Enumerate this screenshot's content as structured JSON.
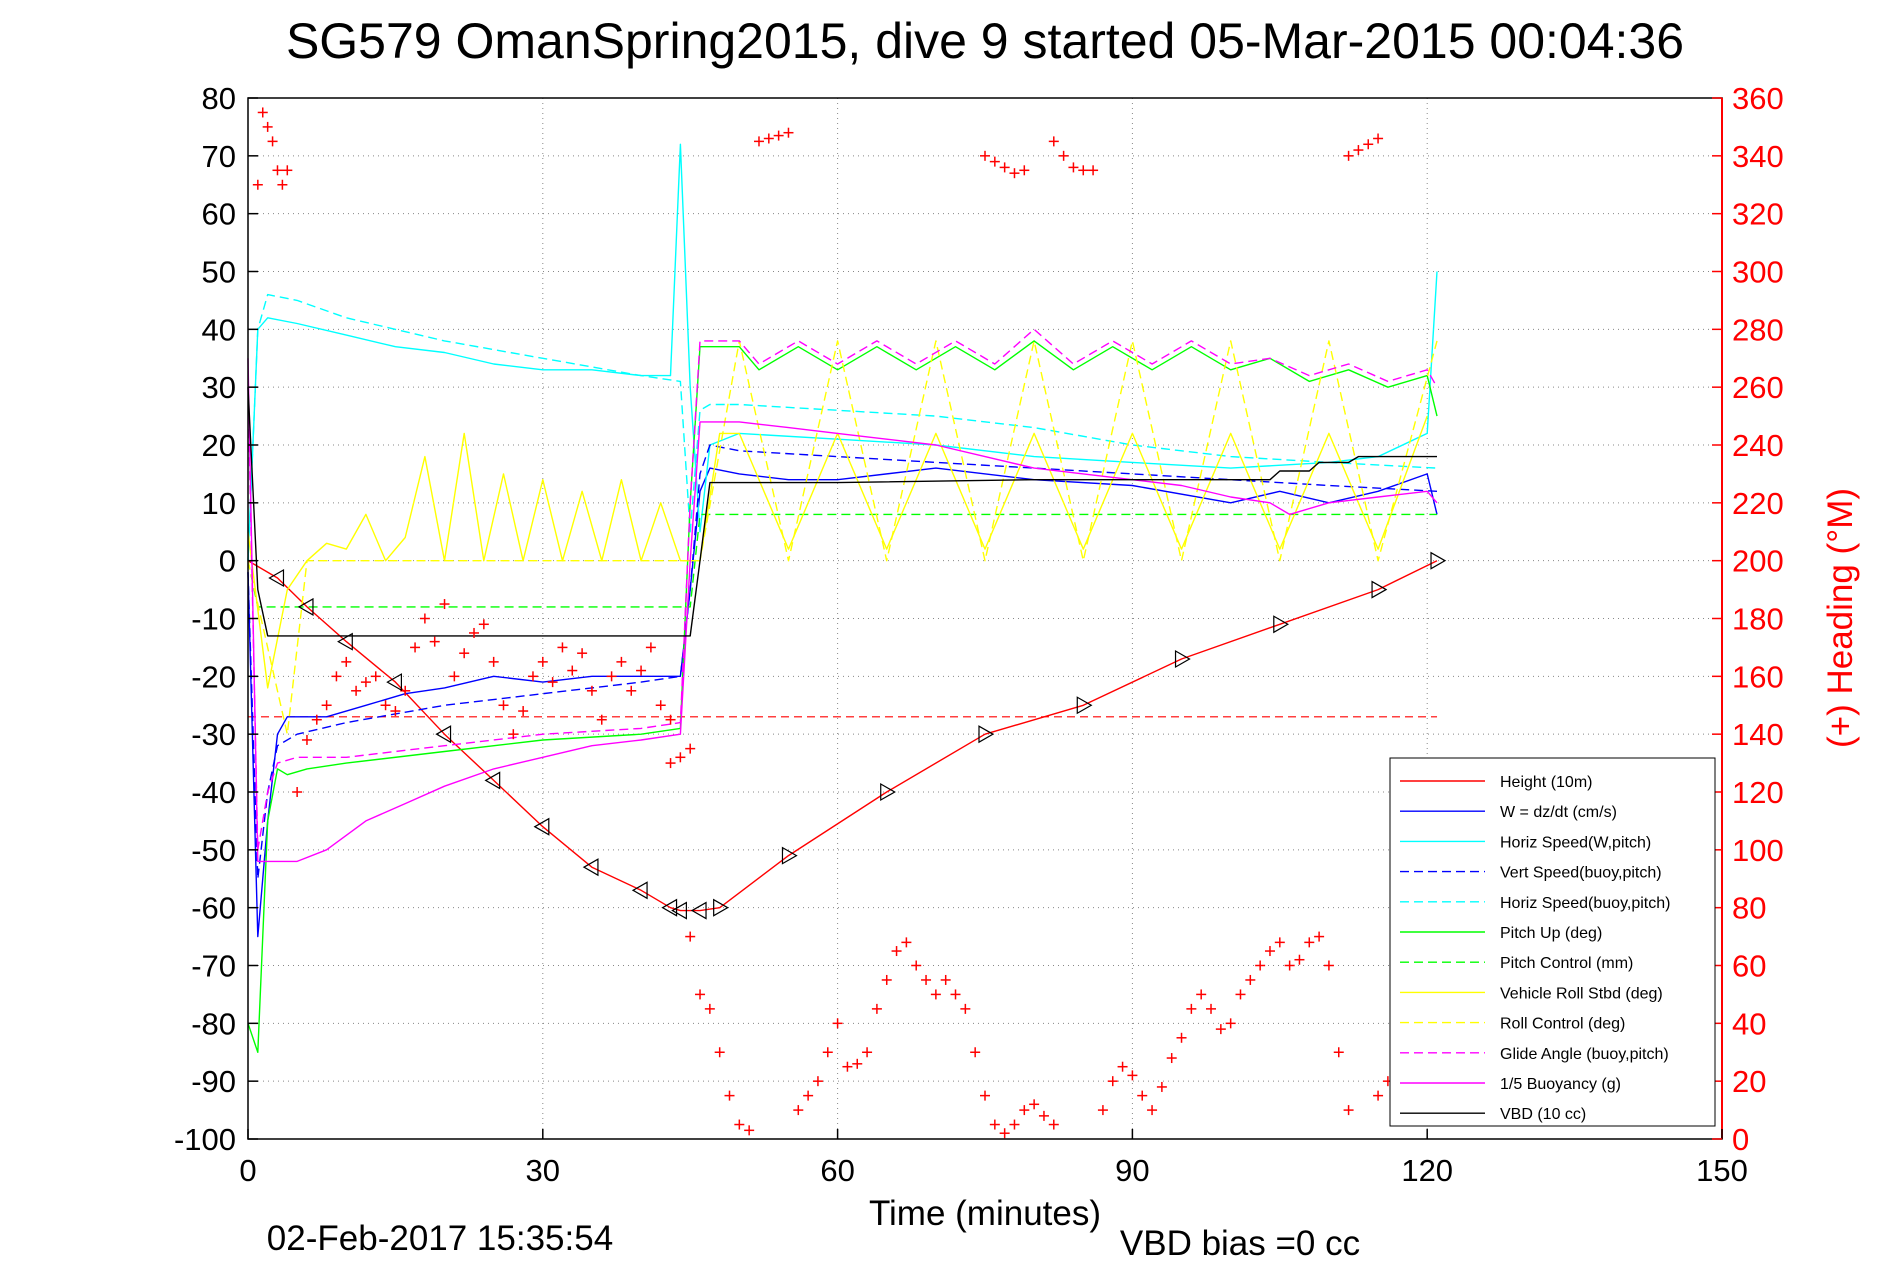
{
  "chart_data": {
    "type": "line",
    "title": "SG579 OmanSpring2015, dive 9 started 05-Mar-2015 00:04:36",
    "xlabel": "Time (minutes)",
    "ylabel_right": "(+) Heading (°M)",
    "xlim": [
      0,
      150
    ],
    "ylim": [
      -100,
      80
    ],
    "ylim_right": [
      0,
      360
    ],
    "x_ticks": [
      "0",
      "30",
      "60",
      "90",
      "120",
      "150"
    ],
    "y_ticks": [
      "80",
      "70",
      "60",
      "50",
      "40",
      "30",
      "20",
      "10",
      "0",
      "-10",
      "-20",
      "-30",
      "-40",
      "-50",
      "-60",
      "-70",
      "-80",
      "-90",
      "-100"
    ],
    "y_right_ticks": [
      "360",
      "340",
      "320",
      "300",
      "280",
      "260",
      "240",
      "220",
      "200",
      "180",
      "160",
      "140",
      "120",
      "100",
      "80",
      "60",
      "40",
      "20",
      "0"
    ],
    "grid": true,
    "legend_position": "bottom-right",
    "footer_date": "02-Feb-2017 15:35:54",
    "footer_note": "VBD bias =0 cc",
    "series": [
      {
        "name": "Height (10m)",
        "color": "#ff0000",
        "style": "solid",
        "x": [
          0,
          3,
          6,
          10,
          15,
          20,
          25,
          30,
          35,
          40,
          43,
          44,
          46,
          48,
          55,
          65,
          75,
          85,
          95,
          105,
          115,
          121
        ],
        "y": [
          0,
          -3,
          -8,
          -14,
          -21,
          -30,
          -38,
          -46,
          -53,
          -57,
          -60,
          -60.5,
          -60.5,
          -60,
          -51,
          -40,
          -30,
          -25,
          -17,
          -11,
          -5,
          0
        ]
      },
      {
        "name": "W = dz/dt (cm/s)",
        "color": "#0000ff",
        "style": "solid",
        "x": [
          0,
          1,
          2,
          3,
          4,
          5,
          8,
          12,
          16,
          20,
          25,
          30,
          35,
          40,
          44,
          45,
          46,
          47,
          50,
          55,
          60,
          70,
          80,
          90,
          100,
          105,
          110,
          115,
          120,
          121
        ],
        "y": [
          -2,
          -65,
          -45,
          -30,
          -27,
          -27,
          -27,
          -25,
          -23,
          -22,
          -20,
          -21,
          -20,
          -20,
          -20,
          -5,
          12,
          16,
          15,
          14,
          14,
          16,
          14,
          13,
          10,
          12,
          10,
          12,
          15,
          8
        ]
      },
      {
        "name": "Horiz Speed(W,pitch)",
        "color": "#00ffff",
        "style": "solid",
        "x": [
          0,
          1,
          2,
          5,
          10,
          15,
          20,
          25,
          30,
          35,
          40,
          43,
          44,
          45,
          46,
          47,
          50,
          60,
          70,
          80,
          90,
          100,
          110,
          115,
          120,
          121
        ],
        "y": [
          0,
          40,
          42,
          41,
          39,
          37,
          36,
          34,
          33,
          33,
          32,
          32,
          72,
          30,
          5,
          20,
          22,
          21,
          20,
          18,
          17,
          16,
          17,
          18,
          22,
          50
        ]
      },
      {
        "name": "Vert Speed(buoy,pitch)",
        "color": "#0000ff",
        "style": "dash",
        "x": [
          0,
          1,
          2,
          3,
          5,
          10,
          20,
          30,
          40,
          44,
          45,
          46,
          47,
          50,
          60,
          70,
          80,
          90,
          100,
          110,
          121
        ],
        "y": [
          -2,
          -55,
          -40,
          -32,
          -30,
          -28,
          -25,
          -23,
          -21,
          -20,
          -5,
          15,
          20,
          19,
          18,
          17,
          16,
          15,
          14,
          13,
          12
        ]
      },
      {
        "name": "Horiz Speed(buoy,pitch)",
        "color": "#00ffff",
        "style": "dash",
        "x": [
          0,
          1,
          2,
          5,
          10,
          20,
          30,
          40,
          44,
          45,
          46,
          47,
          50,
          60,
          70,
          80,
          90,
          100,
          110,
          121
        ],
        "y": [
          0,
          40,
          46,
          45,
          42,
          38,
          35,
          32,
          31,
          5,
          26,
          27,
          27,
          26,
          25,
          23,
          20,
          18,
          17,
          16
        ]
      },
      {
        "name": "Pitch Up (deg)",
        "color": "#00ff00",
        "style": "solid",
        "x": [
          0,
          1,
          2,
          3,
          4,
          6,
          10,
          20,
          30,
          40,
          44,
          45,
          46,
          47,
          50,
          52,
          56,
          60,
          64,
          68,
          72,
          76,
          80,
          84,
          88,
          92,
          96,
          100,
          104,
          108,
          112,
          116,
          120,
          121
        ],
        "y": [
          -80,
          -85,
          -45,
          -36,
          -37,
          -36,
          -35,
          -33,
          -31,
          -30,
          -29,
          10,
          37,
          37,
          37,
          33,
          37,
          33,
          37,
          33,
          37,
          33,
          38,
          33,
          37,
          33,
          37,
          33,
          35,
          31,
          33,
          30,
          32,
          25
        ]
      },
      {
        "name": "Pitch Control (mm)",
        "color": "#00ff00",
        "style": "dash",
        "x": [
          0,
          1,
          2,
          44,
          45,
          46,
          47,
          121
        ],
        "y": [
          0,
          -8,
          -8,
          -8,
          -8,
          8,
          8,
          8
        ]
      },
      {
        "name": "Vehicle Roll Stbd (deg)",
        "color": "#ffff00",
        "style": "solid",
        "x": [
          0,
          2,
          4,
          6,
          8,
          10,
          12,
          14,
          16,
          18,
          20,
          22,
          24,
          26,
          28,
          30,
          32,
          34,
          36,
          38,
          40,
          42,
          44,
          46,
          48,
          50,
          55,
          60,
          65,
          70,
          75,
          80,
          85,
          90,
          95,
          100,
          105,
          110,
          115,
          120
        ],
        "y": [
          5,
          -22,
          -5,
          0,
          3,
          2,
          8,
          0,
          4,
          18,
          0,
          22,
          0,
          15,
          0,
          14,
          0,
          12,
          0,
          14,
          0,
          10,
          0,
          0,
          22,
          22,
          2,
          22,
          2,
          22,
          2,
          22,
          2,
          22,
          2,
          22,
          2,
          22,
          2,
          25
        ]
      },
      {
        "name": "Roll Control (deg)",
        "color": "#ffff00",
        "style": "dash",
        "x": [
          0,
          4,
          6,
          44,
          46,
          50,
          55,
          60,
          65,
          70,
          75,
          80,
          85,
          90,
          95,
          100,
          105,
          110,
          115,
          121
        ],
        "y": [
          0,
          -30,
          0,
          0,
          0,
          38,
          0,
          38,
          0,
          38,
          0,
          38,
          0,
          38,
          0,
          38,
          0,
          38,
          0,
          38
        ]
      },
      {
        "name": "Glide Angle (buoy,pitch)",
        "color": "#ff00ff",
        "style": "dash",
        "x": [
          0,
          1,
          2,
          3,
          5,
          10,
          20,
          30,
          40,
          44,
          45,
          46,
          47,
          50,
          52,
          56,
          60,
          64,
          68,
          72,
          76,
          80,
          84,
          88,
          92,
          96,
          100,
          104,
          108,
          112,
          116,
          120,
          121
        ],
        "y": [
          30,
          -50,
          -40,
          -35,
          -34,
          -34,
          -32,
          -30,
          -29,
          -28,
          10,
          38,
          38,
          38,
          34,
          38,
          34,
          38,
          34,
          38,
          34,
          40,
          34,
          38,
          34,
          38,
          34,
          35,
          32,
          34,
          31,
          33,
          30
        ]
      },
      {
        "name": "1/5 Buoyancy (g)",
        "color": "#ff00ff",
        "style": "solid",
        "x": [
          0,
          1,
          2,
          3,
          5,
          8,
          12,
          16,
          20,
          25,
          30,
          35,
          40,
          44,
          45,
          46,
          47,
          50,
          55,
          60,
          65,
          70,
          75,
          80,
          85,
          90,
          95,
          100,
          104,
          106,
          110,
          115,
          120,
          121
        ],
        "y": [
          35,
          -52,
          -52,
          -52,
          -52,
          -50,
          -45,
          -42,
          -39,
          -36,
          -34,
          -32,
          -31,
          -30,
          0,
          24,
          24,
          24,
          23,
          22,
          21,
          20,
          18,
          16,
          15,
          14,
          13,
          11,
          10,
          8,
          10,
          11,
          12,
          10
        ]
      },
      {
        "name": "VBD (10 cc)",
        "color": "#000000",
        "style": "solid",
        "x": [
          0,
          1,
          2,
          44,
          45,
          46,
          47,
          60,
          80,
          100,
          104,
          105,
          108,
          109,
          112,
          113,
          121
        ],
        "y": [
          30,
          -5,
          -13,
          -13,
          -13,
          0,
          13.5,
          13.5,
          14,
          14,
          14,
          15.5,
          15.5,
          17,
          17,
          18,
          18
        ]
      }
    ],
    "reference_lines": [
      {
        "color": "#ff0000",
        "style": "dash",
        "y": -27,
        "x_range": [
          0,
          121
        ]
      }
    ],
    "heading_points": [
      {
        "x": [
          1,
          1.5,
          2,
          2.5,
          3,
          3.5,
          4
        ],
        "h": [
          330,
          355,
          350,
          345,
          335,
          330,
          335
        ]
      },
      {
        "x": [
          5,
          6,
          7,
          8,
          9,
          10,
          11,
          12,
          13,
          14,
          15,
          16,
          17,
          18,
          19,
          20,
          21,
          22,
          23,
          24,
          25,
          26,
          27,
          28,
          29,
          30,
          31,
          32,
          33,
          34,
          35,
          36,
          37,
          38,
          39,
          40,
          41,
          42,
          43
        ],
        "h": [
          120,
          138,
          145,
          150,
          160,
          165,
          155,
          158,
          160,
          150,
          148,
          155,
          170,
          180,
          172,
          185,
          160,
          168,
          175,
          178,
          165,
          150,
          140,
          148,
          160,
          165,
          158,
          170,
          162,
          168,
          155,
          145,
          160,
          165,
          155,
          162,
          170,
          150,
          145
        ]
      },
      {
        "x": [
          43,
          44,
          45
        ],
        "h": [
          130,
          132,
          135
        ]
      },
      {
        "x": [
          45,
          46,
          47,
          48,
          49,
          50,
          51
        ],
        "h": [
          70,
          50,
          45,
          30,
          15,
          5,
          3
        ]
      },
      {
        "x": [
          52,
          53,
          54,
          55
        ],
        "h": [
          345,
          346,
          347,
          348
        ]
      },
      {
        "x": [
          56,
          57,
          58,
          59,
          60,
          61,
          62,
          63,
          64,
          65,
          66,
          67,
          68,
          69,
          70,
          71,
          72,
          73,
          74,
          75,
          76,
          77
        ],
        "h": [
          10,
          15,
          20,
          30,
          40,
          25,
          26,
          30,
          45,
          55,
          65,
          68,
          60,
          55,
          50,
          55,
          50,
          45,
          30,
          15,
          5,
          2
        ]
      },
      {
        "x": [
          75,
          76,
          77,
          78,
          79
        ],
        "h": [
          340,
          338,
          336,
          334,
          335
        ]
      },
      {
        "x": [
          78,
          79,
          80,
          81,
          82
        ],
        "h": [
          5,
          10,
          12,
          8,
          5
        ]
      },
      {
        "x": [
          82,
          83,
          84,
          85,
          86
        ],
        "h": [
          345,
          340,
          336,
          335,
          335
        ]
      },
      {
        "x": [
          87,
          88,
          89,
          90,
          91,
          92,
          93,
          94,
          95,
          96,
          97,
          98,
          99,
          100,
          101,
          102,
          103,
          104,
          105
        ],
        "h": [
          10,
          20,
          25,
          22,
          15,
          10,
          18,
          28,
          35,
          45,
          50,
          45,
          38,
          40,
          50,
          55,
          60,
          65,
          68
        ]
      },
      {
        "x": [
          106,
          107,
          108,
          109,
          110,
          111,
          112
        ],
        "h": [
          60,
          62,
          68,
          70,
          60,
          30,
          10
        ]
      },
      {
        "x": [
          112,
          113,
          114,
          115
        ],
        "h": [
          340,
          342,
          344,
          346
        ]
      },
      {
        "x": [
          115,
          116,
          117,
          118,
          119,
          120
        ],
        "h": [
          15,
          20,
          25,
          28,
          30,
          32
        ]
      }
    ]
  }
}
